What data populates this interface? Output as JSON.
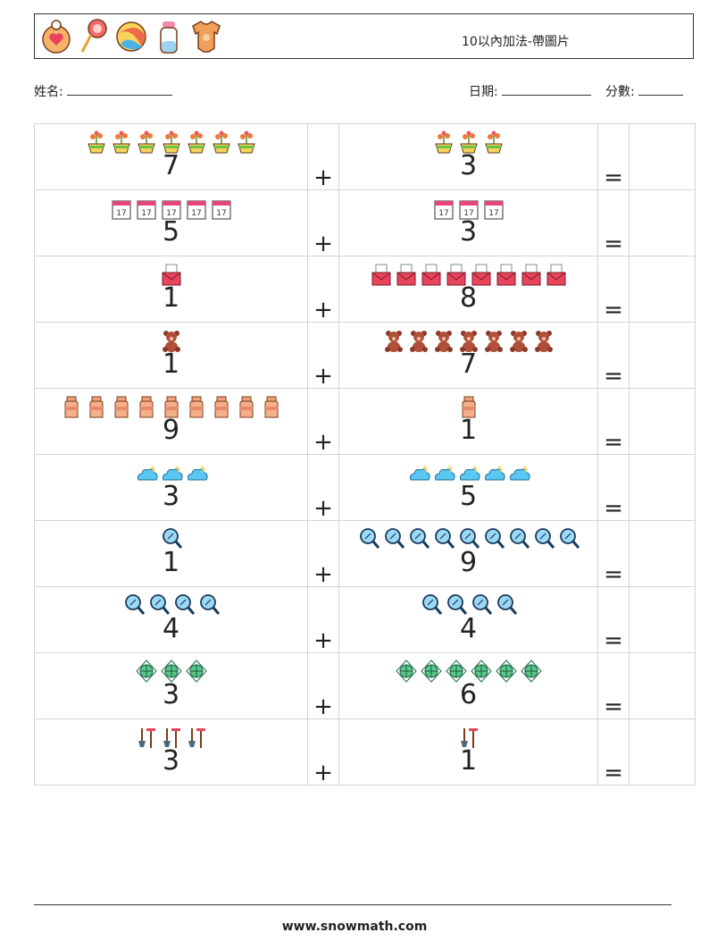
{
  "header": {
    "title": "10以內加法-帶圖片",
    "icons": [
      "bib-icon",
      "lollipop-icon",
      "beach-ball-icon",
      "baby-bottle-icon",
      "onesie-icon"
    ]
  },
  "info": {
    "name_label": "姓名:",
    "date_label": "日期:",
    "score_label": "分數:"
  },
  "operators": {
    "plus": "+",
    "equals": "="
  },
  "problems": [
    {
      "a": 7,
      "b": 3,
      "icon": "flower-pot-icon"
    },
    {
      "a": 5,
      "b": 3,
      "icon": "calendar-icon"
    },
    {
      "a": 1,
      "b": 8,
      "icon": "mail-envelope-icon"
    },
    {
      "a": 1,
      "b": 7,
      "icon": "teddy-bear-icon"
    },
    {
      "a": 9,
      "b": 1,
      "icon": "milk-jar-icon"
    },
    {
      "a": 3,
      "b": 5,
      "icon": "cloud-moon-icon"
    },
    {
      "a": 1,
      "b": 9,
      "icon": "magnifier-icon"
    },
    {
      "a": 4,
      "b": 4,
      "icon": "magnifier-icon"
    },
    {
      "a": 3,
      "b": 6,
      "icon": "ornament-icon"
    },
    {
      "a": 3,
      "b": 1,
      "icon": "shovel-rake-icon"
    }
  ],
  "footer": {
    "url": "www.snowmath.com"
  }
}
